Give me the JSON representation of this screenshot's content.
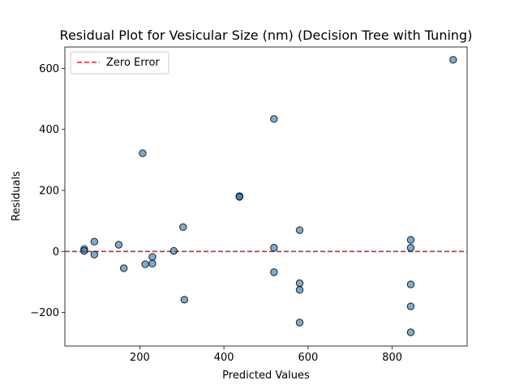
{
  "chart_data": {
    "type": "scatter",
    "title": "Residual Plot for Vesicular  Size (nm) (Decision Tree with Tuning)",
    "xlabel": "Predicted Values",
    "ylabel": "Residuals",
    "xlim": [
      22,
      978
    ],
    "ylim": [
      -310,
      670
    ],
    "xticks": [
      200,
      400,
      600,
      800
    ],
    "yticks": [
      -200,
      0,
      200,
      400,
      600
    ],
    "ytick_labels": [
      "−200",
      "0",
      "200",
      "400",
      "600"
    ],
    "grid": false,
    "legend": {
      "placement": "top-left",
      "entries": [
        "Zero Error"
      ]
    },
    "reference_line": {
      "y": 0,
      "label": "Zero Error",
      "color": "#d62728",
      "style": "dashed"
    },
    "point_color": "#1f77b4",
    "points": [
      {
        "x": 68,
        "y": 8
      },
      {
        "x": 68,
        "y": 2
      },
      {
        "x": 92,
        "y": 32
      },
      {
        "x": 92,
        "y": -10
      },
      {
        "x": 150,
        "y": 22
      },
      {
        "x": 162,
        "y": -55
      },
      {
        "x": 207,
        "y": 322
      },
      {
        "x": 213,
        "y": -42
      },
      {
        "x": 230,
        "y": -18
      },
      {
        "x": 230,
        "y": -40
      },
      {
        "x": 281,
        "y": 2
      },
      {
        "x": 303,
        "y": 80
      },
      {
        "x": 306,
        "y": -158
      },
      {
        "x": 437,
        "y": 181
      },
      {
        "x": 437,
        "y": 179
      },
      {
        "x": 519,
        "y": 434
      },
      {
        "x": 519,
        "y": 12
      },
      {
        "x": 519,
        "y": -68
      },
      {
        "x": 580,
        "y": 70
      },
      {
        "x": 580,
        "y": -104
      },
      {
        "x": 580,
        "y": -126
      },
      {
        "x": 580,
        "y": -233
      },
      {
        "x": 844,
        "y": 38
      },
      {
        "x": 844,
        "y": 12
      },
      {
        "x": 844,
        "y": -108
      },
      {
        "x": 844,
        "y": -180
      },
      {
        "x": 844,
        "y": -265
      },
      {
        "x": 945,
        "y": 628
      }
    ]
  }
}
